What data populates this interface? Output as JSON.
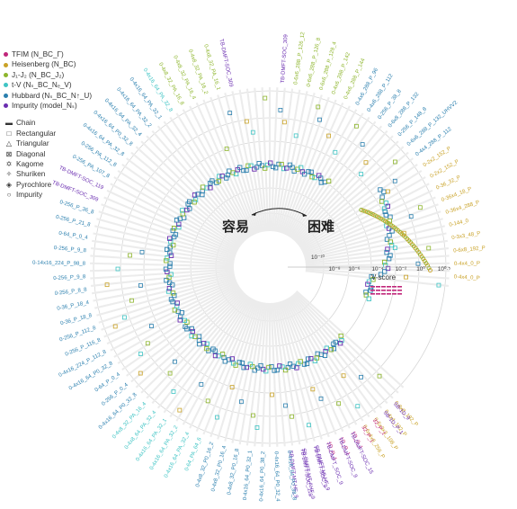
{
  "chart_data": {
    "type": "radial-scatter",
    "center_labels": {
      "easy": "容易",
      "hard": "困难"
    },
    "radial_axis": {
      "label": "V-score",
      "scale": "log",
      "ticks": [
        "10⁻¹⁰",
        "10⁻⁸",
        "10⁻⁶",
        "10⁻⁴",
        "10⁻²",
        "10⁰",
        "10⁰·⁵"
      ]
    },
    "grid": true,
    "legend_placement": "left",
    "model_legend": [
      {
        "label": "TFIM  (N_BC_Γ)",
        "color": "#c0267a"
      },
      {
        "label": "Heisenberg  (N_BC)",
        "color": "#c9a227"
      },
      {
        "label": "J₁-J₂  (N_BC_J₂)",
        "color": "#8db52c"
      },
      {
        "label": "t-V  (Nₛ_BC_Nₑ_V)",
        "color": "#3fc4c4"
      },
      {
        "label": "Hubbard  (Nₛ_BC_N↑_U)",
        "color": "#2a7fae"
      },
      {
        "label": "Impurity  (model_Nₛ)",
        "color": "#6a2db0"
      }
    ],
    "lattice_legend": [
      {
        "label": "Chain",
        "symbol": "▬"
      },
      {
        "label": "Rectangular",
        "symbol": "□"
      },
      {
        "label": "Triangular",
        "symbol": "△"
      },
      {
        "label": "Diagonal",
        "symbol": "⊠"
      },
      {
        "label": "Kagome",
        "symbol": "✡"
      },
      {
        "label": "Shuriken",
        "symbol": "✧"
      },
      {
        "label": "Pyrochlore",
        "symbol": "◈"
      },
      {
        "label": "Impurity",
        "symbol": "○"
      }
    ],
    "outer_labels": [
      {
        "text": "TB-DMFT-SOC_309",
        "model": "Impurity"
      },
      {
        "text": "0-6x6_288_P_126_12",
        "model": "J₁-J₂"
      },
      {
        "text": "0-6x6_288_P_126_8",
        "model": "J₁-J₂"
      },
      {
        "text": "0-6x6_288_P_128_4",
        "model": "J₁-J₂"
      },
      {
        "text": "0-4x6_288_P_142",
        "model": "J₁-J₂"
      },
      {
        "text": "0-4x6_288_P_144",
        "model": "J₁-J₂"
      },
      {
        "text": "0-4x6_288_P_96",
        "model": "Hubbard"
      },
      {
        "text": "0-4x6_288_P_112",
        "model": "Hubbard"
      },
      {
        "text": "0-256_P_38_8",
        "model": "Hubbard"
      },
      {
        "text": "0-6x8_288_P_132",
        "model": "Hubbard"
      },
      {
        "text": "0-256_P_148_8",
        "model": "Hubbard"
      },
      {
        "text": "0-6x6_288_P_132_UHVV2",
        "model": "Hubbard"
      },
      {
        "text": "0-4x4_288_P_112",
        "model": "Hubbard"
      },
      {
        "text": "0-2x2_152_P",
        "model": "Heisenberg"
      },
      {
        "text": "0-2x2_152_P",
        "model": "Heisenberg"
      },
      {
        "text": "0-36_32_P",
        "model": "Heisenberg"
      },
      {
        "text": "0-36x4_18_P",
        "model": "Heisenberg"
      },
      {
        "text": "0-36x4_288_P",
        "model": "Heisenberg"
      },
      {
        "text": "0-144_0",
        "model": "Heisenberg"
      },
      {
        "text": "0-3x3_48_P",
        "model": "Heisenberg"
      },
      {
        "text": "0-6x8_192_P",
        "model": "Heisenberg"
      },
      {
        "text": "0-4x4_0_P",
        "model": "Heisenberg"
      },
      {
        "text": "0-4x4_0_P",
        "model": "Heisenberg"
      },
      {
        "text": "0-8x8_192_P",
        "model": "Heisenberg"
      },
      {
        "text": "0-4x4_192_P",
        "model": "Heisenberg"
      },
      {
        "text": "0-5x3x3_108_P",
        "model": "Heisenberg"
      },
      {
        "text": "0-6x4x8_256_P",
        "model": "Heisenberg"
      },
      {
        "text": "1D_0_1",
        "model": "TFIM"
      },
      {
        "text": "1D_P_1",
        "model": "TFIM"
      },
      {
        "text": "1D_P_1",
        "model": "TFIM"
      },
      {
        "text": "SB-DMFT-MI-HF_9",
        "model": "Impurity"
      },
      {
        "text": "SB-DMFT-MT-AHF_9",
        "model": "Impurity"
      },
      {
        "text": "SB-DMFT-MT-HF_9",
        "model": "Impurity"
      },
      {
        "text": "SB-1D_9",
        "model": "Impurity"
      },
      {
        "text": "SB-1D_P_1",
        "model": "Impurity"
      },
      {
        "text": "32_P_1",
        "model": "TFIM"
      },
      {
        "text": "32_P_1",
        "model": "TFIM"
      },
      {
        "text": "TB-DMFT-SOC_15",
        "model": "Impurity"
      },
      {
        "text": "TB-DMFT-SOC_9",
        "model": "Impurity"
      },
      {
        "text": "TB-DMFT_SOC_9",
        "model": "Impurity"
      },
      {
        "text": "TB-DMFT-SOC_9",
        "model": "Impurity"
      },
      {
        "text": "TB-DMFT-SOC_119",
        "model": "Impurity"
      },
      {
        "text": "0-4x16_64_P0_38_8",
        "model": "Hubbard"
      },
      {
        "text": "0-4x16_64_P0_32_4",
        "model": "Hubbard"
      },
      {
        "text": "0-4x16_64_P0_38_2",
        "model": "Hubbard"
      },
      {
        "text": "0-4x16_64_P0_32_1",
        "model": "Hubbard"
      },
      {
        "text": "0-4x8_32_P0_16_8",
        "model": "Hubbard"
      },
      {
        "text": "0-4x8_32_P0_16_4",
        "model": "Hubbard"
      },
      {
        "text": "0-4x8_32_P0_16_2",
        "model": "Hubbard"
      },
      {
        "text": "0-64_PA_64_6",
        "model": "t-V"
      },
      {
        "text": "0-4x16_64_PA_32_4",
        "model": "t-V"
      },
      {
        "text": "0-4x16_64_PA_32_2",
        "model": "t-V"
      },
      {
        "text": "0-4x16_64_PA_32_1",
        "model": "t-V"
      },
      {
        "text": "0-4x8_64_PA_32_4",
        "model": "t-V"
      },
      {
        "text": "0-4x8_32_PA_16_4",
        "model": "t-V"
      },
      {
        "text": "0-4x16_64_P0_32_8",
        "model": "Hubbard"
      },
      {
        "text": "0-256_P_0_4",
        "model": "Hubbard"
      },
      {
        "text": "0-64_P_0_4",
        "model": "Hubbard"
      },
      {
        "text": "0-4x16_64_P0_32_8",
        "model": "Hubbard"
      },
      {
        "text": "0-4x16_224_P_112_8",
        "model": "Hubbard"
      },
      {
        "text": "0-256_P_116_8",
        "model": "Hubbard"
      },
      {
        "text": "0-256_P_112_8",
        "model": "Hubbard"
      },
      {
        "text": "0-36_P_18_8",
        "model": "Hubbard"
      },
      {
        "text": "0-36_P_18_4",
        "model": "Hubbard"
      },
      {
        "text": "0-256_P_8_8",
        "model": "Hubbard"
      },
      {
        "text": "0-256_P_9_8",
        "model": "Hubbard"
      },
      {
        "text": "0-14x16_224_P_98_8",
        "model": "Hubbard"
      },
      {
        "text": "0-256_P_9_8",
        "model": "Hubbard"
      },
      {
        "text": "0-64_P_0_4",
        "model": "Hubbard"
      },
      {
        "text": "0-256_P_21_8",
        "model": "Hubbard"
      },
      {
        "text": "0-256_P_36_8",
        "model": "Hubbard"
      },
      {
        "text": "TB-DMFT-SOC_309",
        "model": "Impurity"
      },
      {
        "text": "TB-DMFT-SOC_119",
        "model": "Impurity"
      },
      {
        "text": "0-256_PA_107_8",
        "model": "Hubbard"
      },
      {
        "text": "0-256_PA_112_8",
        "model": "Hubbard"
      },
      {
        "text": "0-4x16_64_PA_32_8",
        "model": "Hubbard"
      },
      {
        "text": "0-4x16_64_P0_32_8",
        "model": "Hubbard"
      },
      {
        "text": "0-4x16_64_PA_32_4",
        "model": "Hubbard"
      },
      {
        "text": "0-4x16_64_PA_32_2",
        "model": "Hubbard"
      },
      {
        "text": "0-4x16_64_PA_32_1",
        "model": "Hubbard"
      },
      {
        "text": "0-4x16_64_PA_32_8",
        "model": "t-V"
      },
      {
        "text": "0-4x8_32_PA_16_8",
        "model": "J₁-J₂"
      },
      {
        "text": "0-4x8_32_PA_16_4",
        "model": "J₁-J₂"
      },
      {
        "text": "0-4x8_32_PA_16_2",
        "model": "J₁-J₂"
      },
      {
        "text": "0-4x8_32_PA_16_1",
        "model": "J₁-J₂"
      },
      {
        "text": "TB-DMFT-SOC_309",
        "model": "Impurity"
      }
    ]
  }
}
